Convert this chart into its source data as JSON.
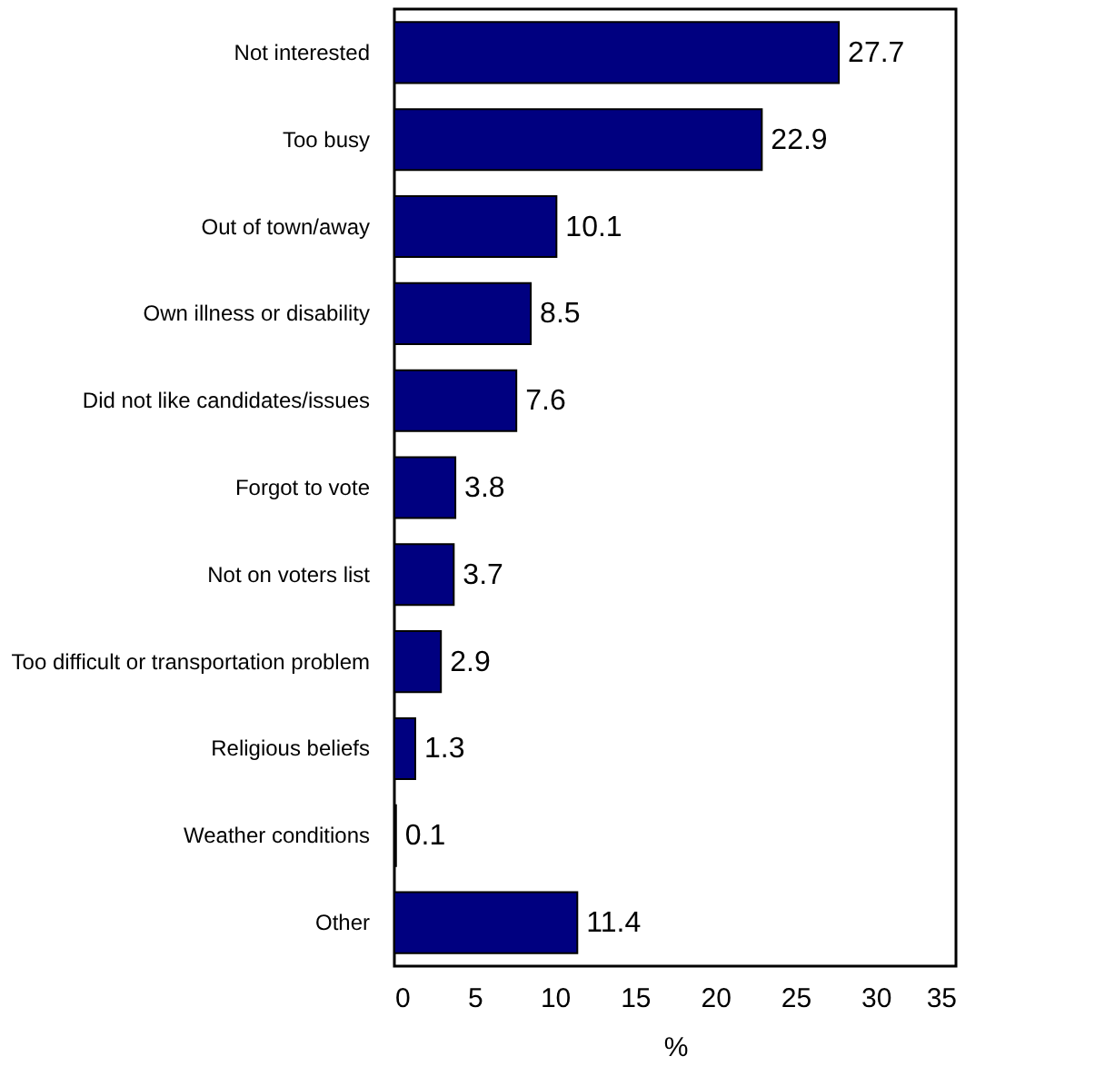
{
  "chart_data": {
    "type": "bar",
    "orientation": "horizontal",
    "xlabel": "%",
    "categories": [
      "Not interested",
      "Too busy",
      "Out of town/away",
      "Own illness or disability",
      "Did not like candidates/issues",
      "Forgot to vote",
      "Not on voters list",
      "Too difficult or transportation problem",
      "Religious beliefs",
      "Weather conditions",
      "Other"
    ],
    "values": [
      27.7,
      22.9,
      10.1,
      8.5,
      7.6,
      3.8,
      3.7,
      2.9,
      1.3,
      0.1,
      11.4
    ],
    "color": "#000080",
    "xlim": [
      0,
      35
    ],
    "xticks": [
      0,
      5,
      10,
      15,
      20,
      25,
      30,
      35
    ],
    "data_labels": true,
    "grid": false
  }
}
